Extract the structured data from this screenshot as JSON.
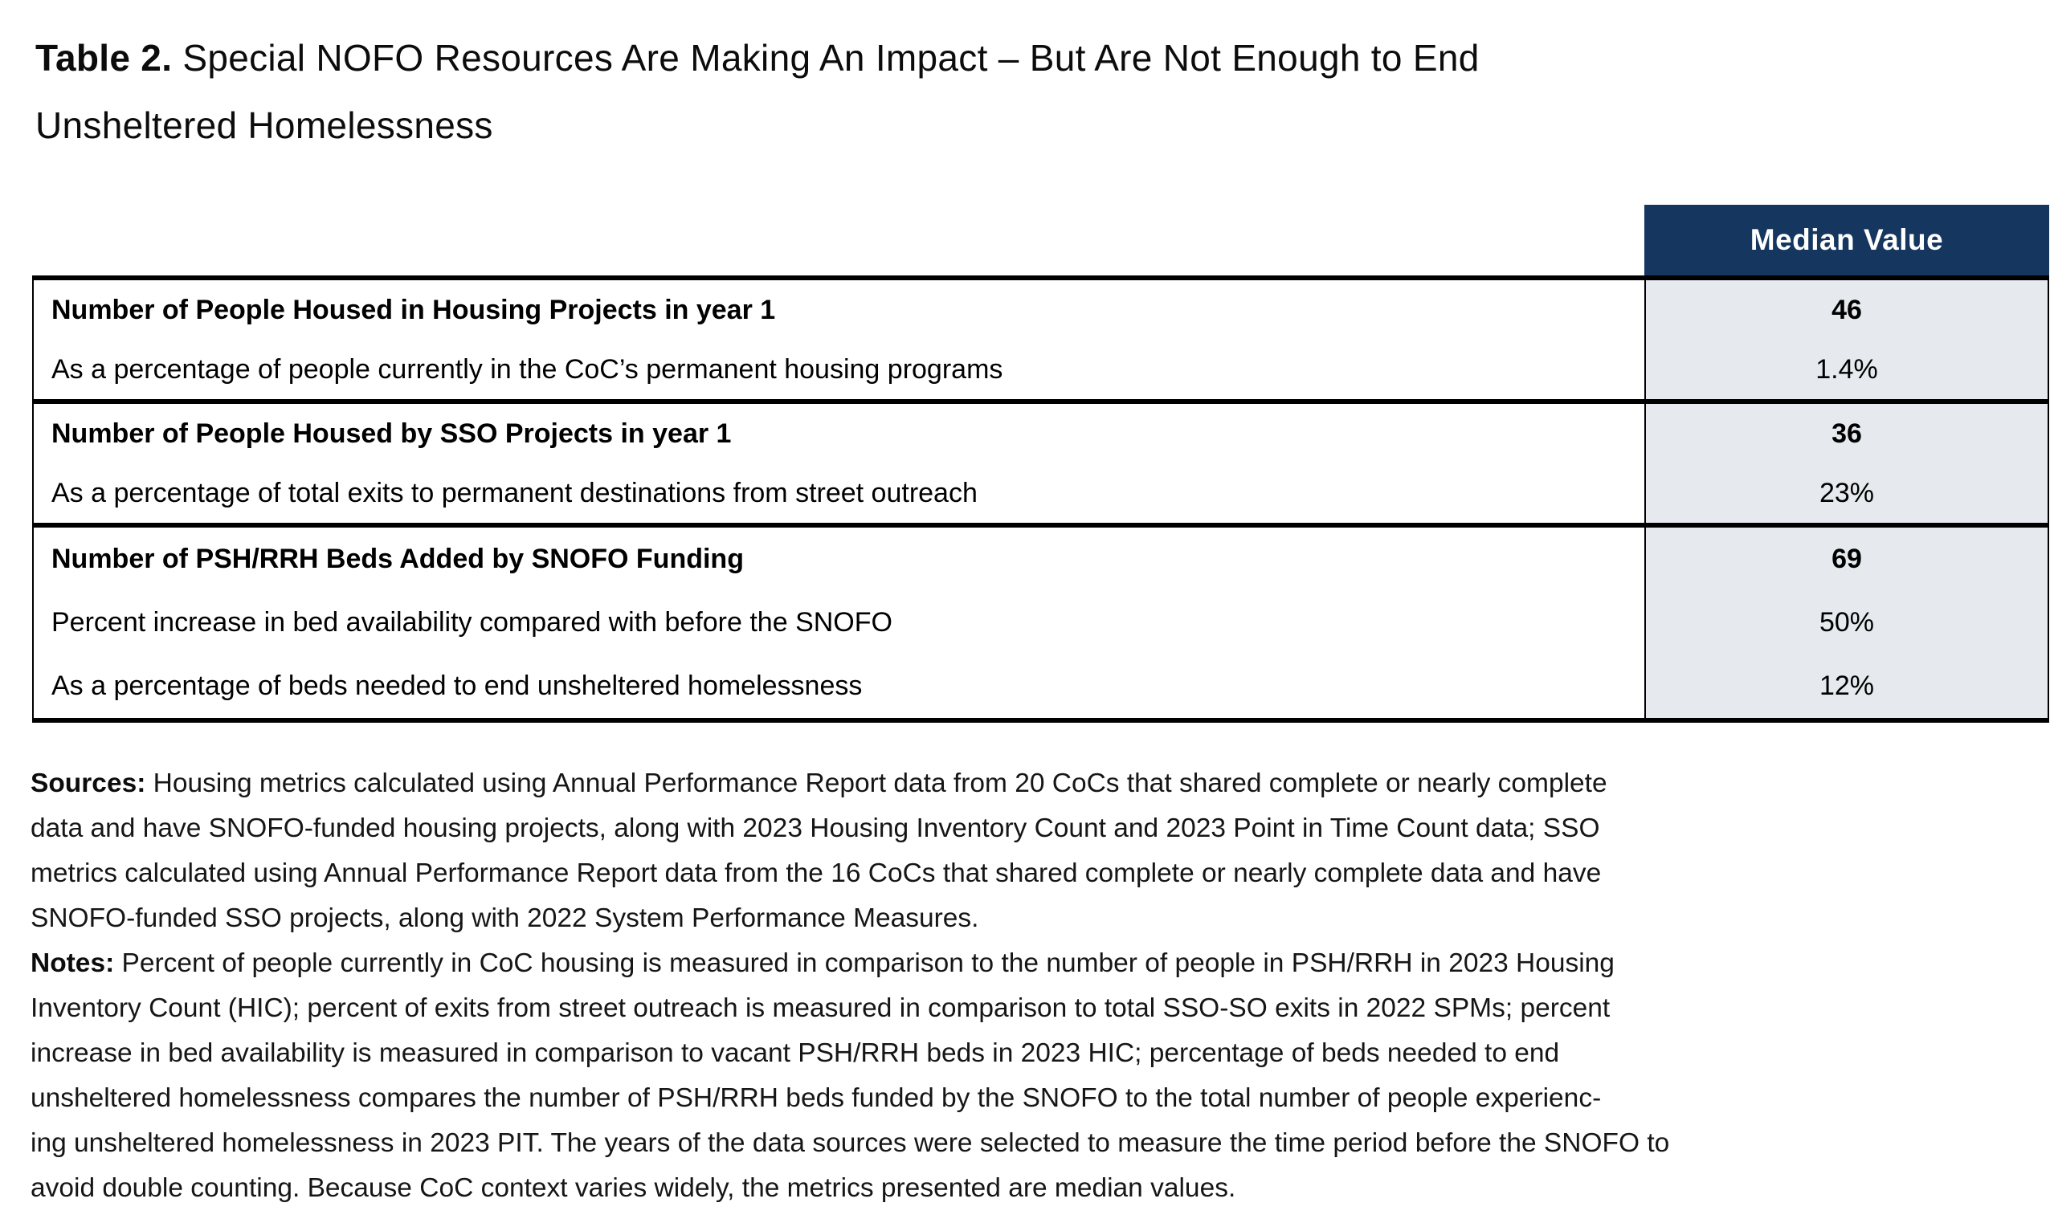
{
  "colors": {
    "header_bg": "#14365F",
    "value_col_bg": "#E6EAEE",
    "border": "#000000"
  },
  "title": {
    "prefix": "Table 2.",
    "line1_rest": " Special NOFO Resources Are Making An Impact – But Are Not Enough to End",
    "line2": "Unsheltered Homelessness"
  },
  "table": {
    "value_header": "Median Value",
    "rows": [
      {
        "label": "Number of People Housed in Housing Projects in year 1",
        "value": "46"
      },
      {
        "label": "As a percentage of people currently in the CoC’s permanent housing programs",
        "value": "1.4%"
      },
      {
        "label": "Number of People Housed by SSO Projects in year 1",
        "value": "36"
      },
      {
        "label": "As a percentage of total exits to permanent destinations from street outreach",
        "value": "23%"
      },
      {
        "label": "Number of PSH/RRH Beds Added by SNOFO Funding",
        "value": "69"
      },
      {
        "label": "Percent increase in bed availability compared with before the SNOFO",
        "value": "50%"
      },
      {
        "label": "As a percentage of beds needed to end unsheltered homelessness",
        "value": "12%"
      }
    ]
  },
  "sources": {
    "label": "Sources:",
    "lines": [
      " Housing metrics calculated using Annual Performance Report data from 20 CoCs that shared complete or nearly complete",
      "data and have SNOFO-funded housing projects, along with 2023 Housing Inventory Count and 2023 Point in Time Count data; SSO",
      "metrics calculated using Annual Performance Report data from the 16 CoCs that shared complete or nearly complete data and have",
      "SNOFO-funded SSO projects, along with 2022 System Performance Measures."
    ]
  },
  "notes": {
    "label": "Notes:",
    "lines": [
      " Percent of people currently in CoC housing is measured in comparison to the number of people in PSH/RRH in 2023 Housing",
      "Inventory Count (HIC); percent of exits from street outreach is measured in comparison to total SSO-SO exits in 2022 SPMs; percent",
      "increase in bed availability is measured in comparison to vacant PSH/RRH beds in 2023 HIC; percentage of beds needed to end",
      "unsheltered homelessness compares the number of PSH/RRH beds funded by the SNOFO to the total number of people experienc-",
      "ing unsheltered homelessness in 2023 PIT. The years of the data sources were selected to measure the time period before the SNOFO to",
      "avoid double counting. Because CoC context varies widely, the metrics presented are median values."
    ]
  }
}
